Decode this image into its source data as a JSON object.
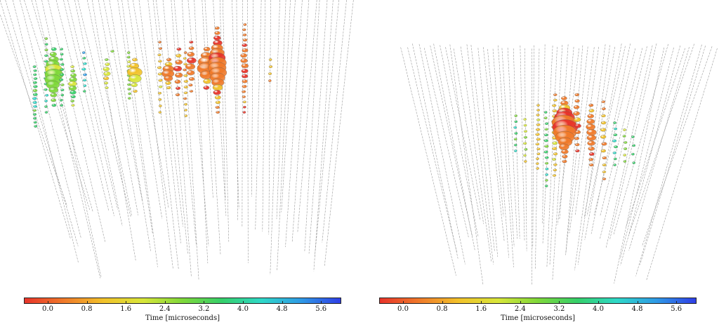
{
  "panels": [
    {
      "name": "left-event-display",
      "colorbar": {
        "label": "Time [microseconds]",
        "ticks": [
          "0.0",
          "0.8",
          "1.6",
          "2.4",
          "3.2",
          "4.0",
          "4.8",
          "5.6"
        ]
      }
    },
    {
      "name": "right-event-display",
      "colorbar": {
        "label": "Time [microseconds]",
        "ticks": [
          "0.0",
          "0.8",
          "1.6",
          "2.4",
          "3.2",
          "4.0",
          "4.8",
          "5.6"
        ]
      }
    }
  ],
  "colors": {
    "gradient": [
      "#e8342a",
      "#f07a2a",
      "#f2c22a",
      "#d8e63a",
      "#7fd83a",
      "#35d06a",
      "#2fd8c8",
      "#2f9ae6",
      "#2f3ee6"
    ],
    "string_line": "#9a9a9a"
  }
}
